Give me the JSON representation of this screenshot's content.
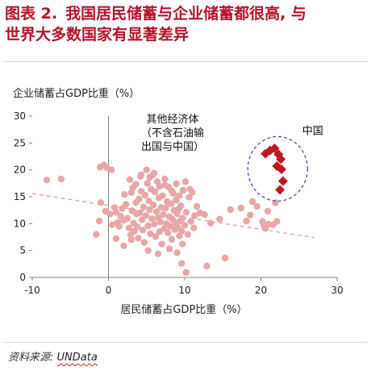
{
  "header": {
    "figure_no": "图表 2.",
    "title_line1": "我国居民储蓄与企业储蓄都很高, 与",
    "title_line2": "世界大多数国家有显著差异"
  },
  "source": {
    "label": "资料来源:",
    "value": "UNData"
  },
  "chart_data": {
    "type": "scatter",
    "ylabel": "企业储蓄占GDP比重（%）",
    "xlabel": "居民储蓄占GDP比重（%）",
    "xlim": [
      -10,
      30
    ],
    "ylim": [
      0,
      30
    ],
    "xticks": [
      -10,
      0,
      10,
      20,
      30
    ],
    "yticks": [
      0,
      5,
      10,
      15,
      20,
      25,
      30
    ],
    "grid": false,
    "colors": {
      "others": "#e8a7a7",
      "china": "#c0161f",
      "trend": "#e8a7a7",
      "circle": "#3f3fd1",
      "axis": "#808080"
    },
    "annotations": {
      "others": [
        "其他经济体",
        "（不含石油输",
        "出国与中国）"
      ],
      "china": "中国"
    },
    "trendline": {
      "x": [
        -10,
        27
      ],
      "y": [
        15.6,
        7.4
      ]
    },
    "series": [
      {
        "name": "其他经济体",
        "points": [
          [
            -8.1,
            18.1
          ],
          [
            -6.2,
            18.3
          ],
          [
            -1.1,
            20.5
          ],
          [
            -0.6,
            20.9
          ],
          [
            -0.2,
            20.4
          ],
          [
            0.4,
            20.0
          ],
          [
            -1.0,
            13.9
          ],
          [
            -1.2,
            10.5
          ],
          [
            -1.6,
            8.0
          ],
          [
            -0.4,
            12.3
          ],
          [
            0.2,
            11.8
          ],
          [
            0.5,
            9.8
          ],
          [
            0.8,
            13.0
          ],
          [
            1.0,
            12.1
          ],
          [
            1.2,
            10.2
          ],
          [
            1.4,
            9.5
          ],
          [
            1.6,
            11.4
          ],
          [
            1.8,
            12.8
          ],
          [
            2.0,
            10.6
          ],
          [
            2.1,
            15.4
          ],
          [
            2.3,
            13.6
          ],
          [
            2.5,
            11.0
          ],
          [
            2.7,
            9.2
          ],
          [
            2.9,
            7.9
          ],
          [
            3.0,
            15.8
          ],
          [
            3.1,
            12.4
          ],
          [
            3.2,
            16.7
          ],
          [
            3.3,
            10.1
          ],
          [
            3.4,
            8.6
          ],
          [
            3.5,
            17.2
          ],
          [
            3.6,
            13.9
          ],
          [
            3.7,
            11.8
          ],
          [
            3.8,
            9.4
          ],
          [
            3.9,
            7.3
          ],
          [
            4.0,
            14.6
          ],
          [
            4.1,
            12.0
          ],
          [
            4.2,
            18.8
          ],
          [
            4.3,
            16.0
          ],
          [
            4.4,
            10.7
          ],
          [
            4.5,
            8.8
          ],
          [
            4.6,
            13.1
          ],
          [
            4.7,
            6.5
          ],
          [
            4.8,
            15.3
          ],
          [
            4.9,
            11.5
          ],
          [
            5.0,
            20.0
          ],
          [
            5.1,
            17.5
          ],
          [
            5.2,
            9.6
          ],
          [
            5.3,
            14.2
          ],
          [
            5.4,
            12.6
          ],
          [
            5.5,
            8.1
          ],
          [
            5.6,
            16.4
          ],
          [
            5.7,
            10.9
          ],
          [
            5.8,
            19.0
          ],
          [
            5.9,
            13.5
          ],
          [
            6.0,
            9.9
          ],
          [
            6.1,
            15.9
          ],
          [
            6.2,
            7.6
          ],
          [
            6.3,
            12.2
          ],
          [
            6.4,
            17.8
          ],
          [
            6.5,
            11.1
          ],
          [
            6.6,
            14.8
          ],
          [
            6.7,
            8.5
          ],
          [
            6.8,
            10.3
          ],
          [
            6.9,
            13.0
          ],
          [
            7.0,
            6.2
          ],
          [
            7.1,
            15.2
          ],
          [
            7.2,
            11.7
          ],
          [
            7.3,
            9.1
          ],
          [
            7.4,
            18.3
          ],
          [
            7.5,
            12.9
          ],
          [
            7.6,
            10.0
          ],
          [
            7.7,
            14.1
          ],
          [
            7.8,
            8.3
          ],
          [
            7.9,
            16.8
          ],
          [
            8.0,
            11.3
          ],
          [
            8.1,
            9.5
          ],
          [
            8.2,
            13.7
          ],
          [
            8.3,
            7.1
          ],
          [
            8.4,
            10.8
          ],
          [
            8.5,
            15.6
          ],
          [
            8.6,
            12.5
          ],
          [
            8.7,
            8.9
          ],
          [
            8.8,
            10.1
          ],
          [
            8.9,
            14.4
          ],
          [
            9.0,
            11.9
          ],
          [
            9.1,
            9.3
          ],
          [
            9.2,
            12.7
          ],
          [
            9.3,
            7.7
          ],
          [
            9.4,
            10.5
          ],
          [
            9.5,
            13.3
          ],
          [
            9.6,
            8.6
          ],
          [
            9.7,
            11.0
          ],
          [
            9.8,
            16.2
          ],
          [
            10.0,
            9.7
          ],
          [
            10.2,
            12.1
          ],
          [
            10.4,
            8.0
          ],
          [
            10.6,
            14.9
          ],
          [
            10.8,
            10.4
          ],
          [
            11.0,
            15.8
          ],
          [
            11.3,
            11.5
          ],
          [
            11.6,
            13.2
          ],
          [
            12.0,
            12.0
          ],
          [
            9.6,
            2.6
          ],
          [
            10.2,
            0.9
          ],
          [
            12.9,
            2.1
          ],
          [
            15.3,
            3.6
          ],
          [
            16.0,
            12.6
          ],
          [
            17.4,
            12.9
          ],
          [
            18.1,
            10.5
          ],
          [
            18.6,
            11.6
          ],
          [
            18.9,
            14.1
          ],
          [
            19.5,
            13.2
          ],
          [
            20.2,
            10.4
          ],
          [
            20.4,
            9.7
          ],
          [
            20.6,
            9.1
          ],
          [
            21.0,
            9.9
          ],
          [
            21.6,
            9.8
          ],
          [
            22.1,
            10.4
          ],
          [
            21.9,
            13.9
          ],
          [
            20.9,
            12.3
          ],
          [
            2.8,
            18.2
          ],
          [
            3.6,
            17.3
          ],
          [
            4.3,
            19.1
          ],
          [
            5.4,
            18.6
          ],
          [
            6.0,
            19.4
          ],
          [
            6.7,
            16.9
          ],
          [
            7.4,
            17.2
          ],
          [
            8.3,
            16.1
          ],
          [
            8.9,
            17.4
          ],
          [
            9.3,
            15.2
          ],
          [
            10.1,
            17.8
          ],
          [
            10.7,
            16.4
          ],
          [
            1.0,
            7.2
          ],
          [
            2.0,
            5.9
          ],
          [
            5.2,
            5.0
          ],
          [
            6.5,
            4.4
          ],
          [
            8.0,
            5.3
          ],
          [
            9.0,
            4.6
          ],
          [
            9.7,
            6.2
          ],
          [
            11.2,
            9.2
          ],
          [
            12.6,
            11.7
          ],
          [
            13.4,
            10.1
          ],
          [
            14.6,
            10.8
          ],
          [
            3.0,
            7.0
          ]
        ]
      },
      {
        "name": "中国",
        "points": [
          [
            20.6,
            23.0
          ],
          [
            21.2,
            23.6
          ],
          [
            21.8,
            24.0
          ],
          [
            22.3,
            22.9
          ],
          [
            22.6,
            22.0
          ],
          [
            22.1,
            20.7
          ],
          [
            22.7,
            20.1
          ],
          [
            22.9,
            17.9
          ],
          [
            22.5,
            16.3
          ]
        ]
      }
    ]
  }
}
